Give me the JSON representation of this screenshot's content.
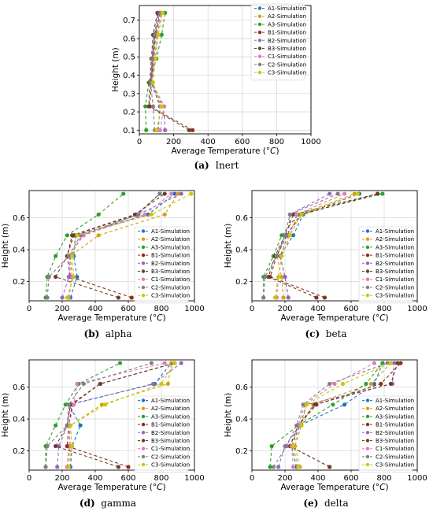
{
  "figure": {
    "series_names": [
      "A1-Simulation",
      "A2-Simulation",
      "A3-Simulation",
      "B1-Simulation",
      "B2-Simulation",
      "B3-Simulation",
      "C1-Simulation",
      "C2-Simulation",
      "C3-Simulation"
    ],
    "series_colors": [
      "#1f77b4",
      "#d4a017",
      "#2ca02c",
      "#8c2d19",
      "#9467bd",
      "#6b3e2e",
      "#e377c2",
      "#7f7f7f",
      "#c8c800"
    ],
    "panels": [
      {
        "id": "inert",
        "label": "(a)",
        "name": "Inert"
      },
      {
        "id": "alpha",
        "label": "(b)",
        "name": "alpha"
      },
      {
        "id": "beta",
        "label": "(c)",
        "name": "beta"
      },
      {
        "id": "gamma",
        "label": "(d)",
        "name": "gamma"
      },
      {
        "id": "delta",
        "label": "(e)",
        "name": "delta"
      }
    ]
  },
  "chart_data": [
    {
      "panel": "inert",
      "type": "line",
      "xlabel": "Average Temperature (°C)",
      "ylabel": "Height (m)",
      "xlim": [
        0,
        1000
      ],
      "ylim": [
        0.08,
        0.78
      ],
      "xticks": [
        0,
        200,
        400,
        600,
        800,
        1000
      ],
      "yticks": [
        0.1,
        0.2,
        0.3,
        0.4,
        0.5,
        0.6,
        0.7
      ],
      "grid": true,
      "legend": "top-right",
      "y": [
        0.1,
        0.23,
        0.36,
        0.49,
        0.62,
        0.74
      ],
      "series": [
        {
          "name": "A1-Simulation",
          "x": [
            110,
            120,
            70,
            80,
            95,
            120
          ]
        },
        {
          "name": "A2-Simulation",
          "x": [
            105,
            125,
            75,
            85,
            100,
            125
          ]
        },
        {
          "name": "A3-Simulation",
          "x": [
            40,
            35,
            55,
            100,
            130,
            150
          ]
        },
        {
          "name": "B1-Simulation",
          "x": [
            310,
            60,
            70,
            80,
            90,
            110
          ]
        },
        {
          "name": "B2-Simulation",
          "x": [
            150,
            140,
            65,
            75,
            85,
            115
          ]
        },
        {
          "name": "B3-Simulation",
          "x": [
            290,
            55,
            60,
            70,
            80,
            105
          ]
        },
        {
          "name": "C1-Simulation",
          "x": [
            120,
            145,
            75,
            90,
            105,
            130
          ]
        },
        {
          "name": "C2-Simulation",
          "x": [
            90,
            80,
            65,
            75,
            90,
            120
          ]
        },
        {
          "name": "C3-Simulation",
          "x": [
            100,
            130,
            80,
            95,
            110,
            135
          ]
        }
      ]
    },
    {
      "panel": "alpha",
      "type": "line",
      "xlabel": "Average Temperature (°C)",
      "ylabel": "Height (m)",
      "xlim": [
        0,
        1000
      ],
      "ylim": [
        0.08,
        0.77
      ],
      "xticks": [
        0,
        200,
        400,
        600,
        800,
        1000
      ],
      "yticks": [
        0.2,
        0.4,
        0.6
      ],
      "grid": true,
      "legend": "right",
      "y": [
        0.1,
        0.23,
        0.36,
        0.49,
        0.62,
        0.75
      ],
      "series": [
        {
          "name": "A1-Simulation",
          "x": [
            250,
            290,
            270,
            280,
            720,
            880
          ]
        },
        {
          "name": "A2-Simulation",
          "x": [
            240,
            260,
            250,
            420,
            820,
            900
          ]
        },
        {
          "name": "A3-Simulation",
          "x": [
            100,
            110,
            160,
            230,
            420,
            570
          ]
        },
        {
          "name": "B1-Simulation",
          "x": [
            620,
            250,
            230,
            270,
            650,
            790
          ]
        },
        {
          "name": "B2-Simulation",
          "x": [
            200,
            240,
            250,
            320,
            660,
            920
          ]
        },
        {
          "name": "B3-Simulation",
          "x": [
            540,
            160,
            230,
            260,
            640,
            820
          ]
        },
        {
          "name": "C1-Simulation",
          "x": [
            240,
            260,
            240,
            330,
            700,
            860
          ]
        },
        {
          "name": "C2-Simulation",
          "x": [
            110,
            120,
            240,
            310,
            660,
            790
          ]
        },
        {
          "name": "C3-Simulation",
          "x": [
            230,
            270,
            260,
            290,
            740,
            980
          ]
        }
      ]
    },
    {
      "panel": "beta",
      "type": "line",
      "xlabel": "Average Temperature (°C)",
      "ylabel": "Height (m)",
      "xlim": [
        0,
        1000
      ],
      "ylim": [
        0.08,
        0.77
      ],
      "xticks": [
        0,
        200,
        400,
        600,
        800,
        1000
      ],
      "yticks": [
        0.2,
        0.4,
        0.6
      ],
      "grid": true,
      "legend": "right",
      "y": [
        0.1,
        0.23,
        0.36,
        0.49,
        0.62,
        0.75
      ],
      "series": [
        {
          "name": "A1-Simulation",
          "x": [
            220,
            200,
            170,
            250,
            310,
            650
          ]
        },
        {
          "name": "A2-Simulation",
          "x": [
            190,
            180,
            150,
            210,
            290,
            620
          ]
        },
        {
          "name": "A3-Simulation",
          "x": [
            70,
            70,
            130,
            180,
            280,
            790
          ]
        },
        {
          "name": "B1-Simulation",
          "x": [
            440,
            110,
            150,
            210,
            300,
            760
          ]
        },
        {
          "name": "B2-Simulation",
          "x": [
            220,
            200,
            170,
            220,
            230,
            470
          ]
        },
        {
          "name": "B3-Simulation",
          "x": [
            390,
            100,
            140,
            200,
            250,
            760
          ]
        },
        {
          "name": "C1-Simulation",
          "x": [
            150,
            160,
            180,
            230,
            270,
            560
          ]
        },
        {
          "name": "C2-Simulation",
          "x": [
            70,
            80,
            150,
            200,
            230,
            520
          ]
        },
        {
          "name": "C3-Simulation",
          "x": [
            140,
            160,
            180,
            230,
            300,
            640
          ]
        }
      ]
    },
    {
      "panel": "gamma",
      "type": "line",
      "xlabel": "Average Temperature (°C)",
      "ylabel": "Height (m)",
      "xlim": [
        0,
        1000
      ],
      "ylim": [
        0.08,
        0.77
      ],
      "xticks": [
        0,
        200,
        400,
        600,
        800,
        1000
      ],
      "yticks": [
        0.2,
        0.4,
        0.6
      ],
      "grid": true,
      "legend": "right",
      "y": [
        0.1,
        0.23,
        0.36,
        0.49,
        0.62,
        0.75
      ],
      "series": [
        {
          "name": "A1-Simulation",
          "x": [
            250,
            260,
            310,
            240,
            760,
            860
          ]
        },
        {
          "name": "A2-Simulation",
          "x": [
            230,
            240,
            250,
            440,
            840,
            860
          ]
        },
        {
          "name": "A3-Simulation",
          "x": [
            100,
            100,
            160,
            220,
            300,
            550
          ]
        },
        {
          "name": "B1-Simulation",
          "x": [
            600,
            230,
            240,
            260,
            430,
            880
          ]
        },
        {
          "name": "B2-Simulation",
          "x": [
            170,
            180,
            230,
            250,
            750,
            920
          ]
        },
        {
          "name": "B3-Simulation",
          "x": [
            540,
            160,
            230,
            250,
            430,
            880
          ]
        },
        {
          "name": "C1-Simulation",
          "x": [
            230,
            250,
            240,
            270,
            290,
            820
          ]
        },
        {
          "name": "C2-Simulation",
          "x": [
            100,
            110,
            230,
            240,
            330,
            740
          ]
        },
        {
          "name": "C3-Simulation",
          "x": [
            240,
            260,
            250,
            460,
            800,
            880
          ]
        }
      ]
    },
    {
      "panel": "delta",
      "type": "line",
      "xlabel": "Average Temperature (°C)",
      "ylabel": "Height (m)",
      "xlim": [
        0,
        1000
      ],
      "ylim": [
        0.08,
        0.77
      ],
      "xticks": [
        0,
        200,
        400,
        600,
        800,
        1000
      ],
      "yticks": [
        0.2,
        0.4,
        0.6
      ],
      "grid": true,
      "legend": "right",
      "y": [
        0.1,
        0.23,
        0.36,
        0.49,
        0.62,
        0.75
      ],
      "series": [
        {
          "name": "A1-Simulation",
          "x": [
            270,
            240,
            290,
            560,
            740,
            790
          ]
        },
        {
          "name": "A2-Simulation",
          "x": [
            290,
            260,
            300,
            370,
            720,
            840
          ]
        },
        {
          "name": "A3-Simulation",
          "x": [
            110,
            120,
            280,
            490,
            690,
            790
          ]
        },
        {
          "name": "B1-Simulation",
          "x": [
            470,
            230,
            280,
            390,
            780,
            900
          ]
        },
        {
          "name": "B2-Simulation",
          "x": [
            160,
            200,
            290,
            330,
            850,
            860
          ]
        },
        {
          "name": "B3-Simulation",
          "x": [
            470,
            230,
            280,
            380,
            840,
            880
          ]
        },
        {
          "name": "C1-Simulation",
          "x": [
            250,
            240,
            280,
            320,
            500,
            740
          ]
        },
        {
          "name": "C2-Simulation",
          "x": [
            130,
            210,
            270,
            310,
            470,
            820
          ]
        },
        {
          "name": "C3-Simulation",
          "x": [
            280,
            250,
            300,
            330,
            550,
            840
          ]
        }
      ]
    }
  ]
}
